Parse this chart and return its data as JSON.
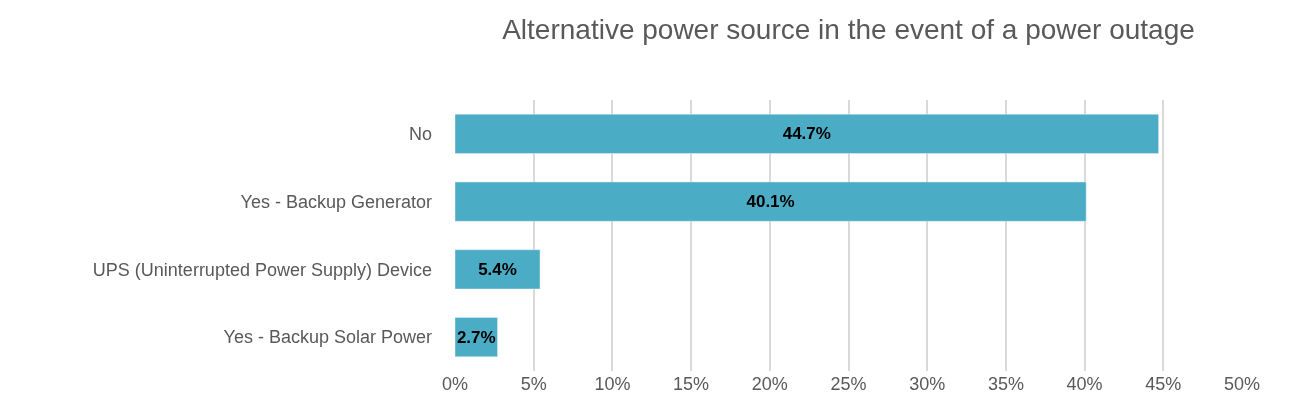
{
  "chart_data": {
    "type": "bar",
    "orientation": "horizontal",
    "title": "Alternative power source in the event of a power outage",
    "categories": [
      "No",
      "Yes - Backup Generator",
      "UPS (Uninterrupted Power Supply) Device",
      "Yes - Backup Solar Power"
    ],
    "values": [
      44.7,
      40.1,
      5.4,
      2.7
    ],
    "value_labels": [
      "44.7%",
      "40.1%",
      "5.4%",
      "2.7%"
    ],
    "color": "#4bacc6",
    "xlim": [
      0,
      50
    ],
    "xticks": [
      {
        "value": 0,
        "label": "0%"
      },
      {
        "value": 5,
        "label": "5%"
      },
      {
        "value": 10,
        "label": "10%"
      },
      {
        "value": 15,
        "label": "15%"
      },
      {
        "value": 20,
        "label": "20%"
      },
      {
        "value": 25,
        "label": "25%"
      },
      {
        "value": 30,
        "label": "30%"
      },
      {
        "value": 35,
        "label": "35%"
      },
      {
        "value": 40,
        "label": "40%"
      },
      {
        "value": 45,
        "label": "45%"
      },
      {
        "value": 50,
        "label": "50%"
      }
    ],
    "grid": "x"
  }
}
